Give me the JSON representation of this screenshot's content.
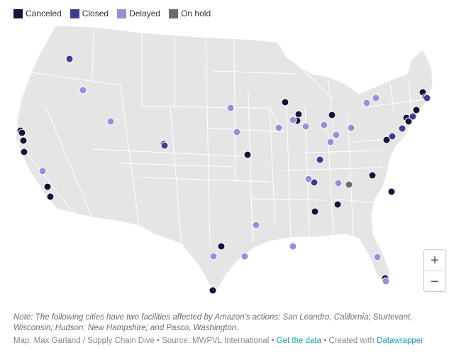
{
  "legend": [
    {
      "label": "Canceled",
      "color": "#13123a"
    },
    {
      "label": "Closed",
      "color": "#3e3d92"
    },
    {
      "label": "Delayed",
      "color": "#9392d9"
    },
    {
      "label": "On hold",
      "color": "#6b6b70"
    }
  ],
  "zoom": {
    "in_label": "+",
    "out_label": "−"
  },
  "note": "Note: The following cities have two facilities affected by Amazon's actions: San Leandro, California; Sturtevant, Wisconsin; Hudson, New Hampshire; and Pasco, Washington.",
  "footer": {
    "credit": "Map: Max Garland / Supply Chain Dive • Source: MWPVL International • ",
    "get_data": "Get the data",
    "separator": " • Created with ",
    "datawrapper": "Datawrapper"
  },
  "colors": {
    "land": "#e5e5e5",
    "border": "#ffffff"
  }
}
